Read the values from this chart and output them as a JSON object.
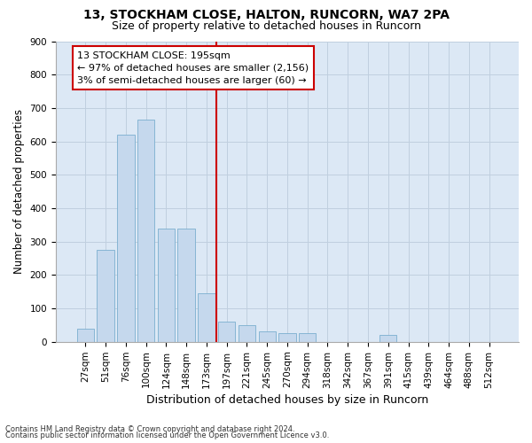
{
  "title1": "13, STOCKHAM CLOSE, HALTON, RUNCORN, WA7 2PA",
  "title2": "Size of property relative to detached houses in Runcorn",
  "xlabel": "Distribution of detached houses by size in Runcorn",
  "ylabel": "Number of detached properties",
  "footnote1": "Contains HM Land Registry data © Crown copyright and database right 2024.",
  "footnote2": "Contains public sector information licensed under the Open Government Licence v3.0.",
  "annotation_line1": "13 STOCKHAM CLOSE: 195sqm",
  "annotation_line2": "← 97% of detached houses are smaller (2,156)",
  "annotation_line3": "3% of semi-detached houses are larger (60) →",
  "bar_labels": [
    "27sqm",
    "51sqm",
    "76sqm",
    "100sqm",
    "124sqm",
    "148sqm",
    "173sqm",
    "197sqm",
    "221sqm",
    "245sqm",
    "270sqm",
    "294sqm",
    "318sqm",
    "342sqm",
    "367sqm",
    "391sqm",
    "415sqm",
    "439sqm",
    "464sqm",
    "488sqm",
    "512sqm"
  ],
  "bar_values": [
    40,
    275,
    620,
    665,
    340,
    340,
    145,
    60,
    50,
    30,
    25,
    25,
    0,
    0,
    0,
    20,
    0,
    0,
    0,
    0,
    0
  ],
  "bar_color": "#c5d8ed",
  "bar_edge_color": "#7aafcf",
  "vline_color": "#cc0000",
  "vline_x": 6.5,
  "ylim_max": 900,
  "yticks": [
    0,
    100,
    200,
    300,
    400,
    500,
    600,
    700,
    800,
    900
  ],
  "plot_bg_color": "#dce8f5",
  "fig_bg": "#ffffff",
  "grid_color": "#c0cfdf",
  "box_edge_color": "#cc0000",
  "title_fs": 10,
  "subtitle_fs": 9,
  "ylabel_fs": 8.5,
  "xlabel_fs": 9,
  "tick_fs": 7.5,
  "ann_fs": 8,
  "footnote_fs": 6
}
